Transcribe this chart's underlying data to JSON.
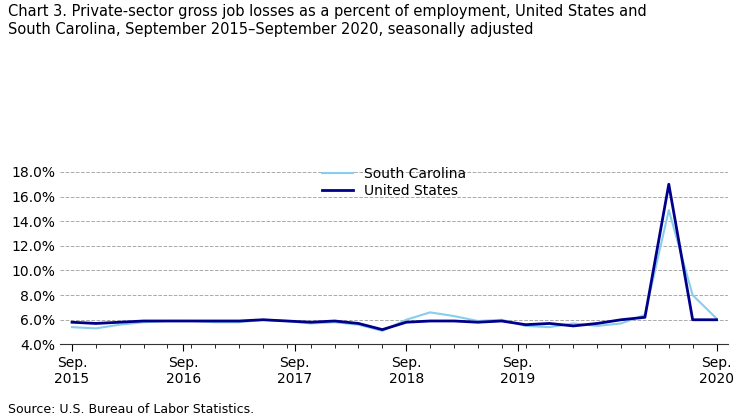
{
  "title_line1": "Chart 3. Private-sector gross job losses as a percent of employment, United States and",
  "title_line2": "South Carolina, September 2015–September 2020, seasonally adjusted",
  "source": "Source: U.S. Bureau of Labor Statistics.",
  "us_label": "United States",
  "sc_label": "South Carolina",
  "us_color": "#00008B",
  "sc_color": "#87CEEB",
  "us_linewidth": 2.0,
  "sc_linewidth": 1.5,
  "ylim": [
    0.04,
    0.19
  ],
  "yticks": [
    0.04,
    0.06,
    0.08,
    0.1,
    0.12,
    0.14,
    0.16,
    0.18
  ],
  "us_values": [
    0.058,
    0.057,
    0.058,
    0.059,
    0.059,
    0.059,
    0.059,
    0.059,
    0.06,
    0.059,
    0.058,
    0.059,
    0.057,
    0.052,
    0.058,
    0.059,
    0.059,
    0.058,
    0.059,
    0.056,
    0.057,
    0.055,
    0.057,
    0.06,
    0.062,
    0.17,
    0.06,
    0.06
  ],
  "sc_values": [
    0.054,
    0.053,
    0.056,
    0.058,
    0.059,
    0.059,
    0.058,
    0.058,
    0.06,
    0.059,
    0.057,
    0.058,
    0.056,
    0.051,
    0.06,
    0.066,
    0.063,
    0.059,
    0.06,
    0.055,
    0.054,
    0.057,
    0.055,
    0.057,
    0.064,
    0.149,
    0.08,
    0.061
  ],
  "background_color": "#FFFFFF",
  "grid_color": "#AAAAAA",
  "title_fontsize": 10.5,
  "legend_fontsize": 10,
  "tick_fontsize": 10,
  "source_fontsize": 9
}
